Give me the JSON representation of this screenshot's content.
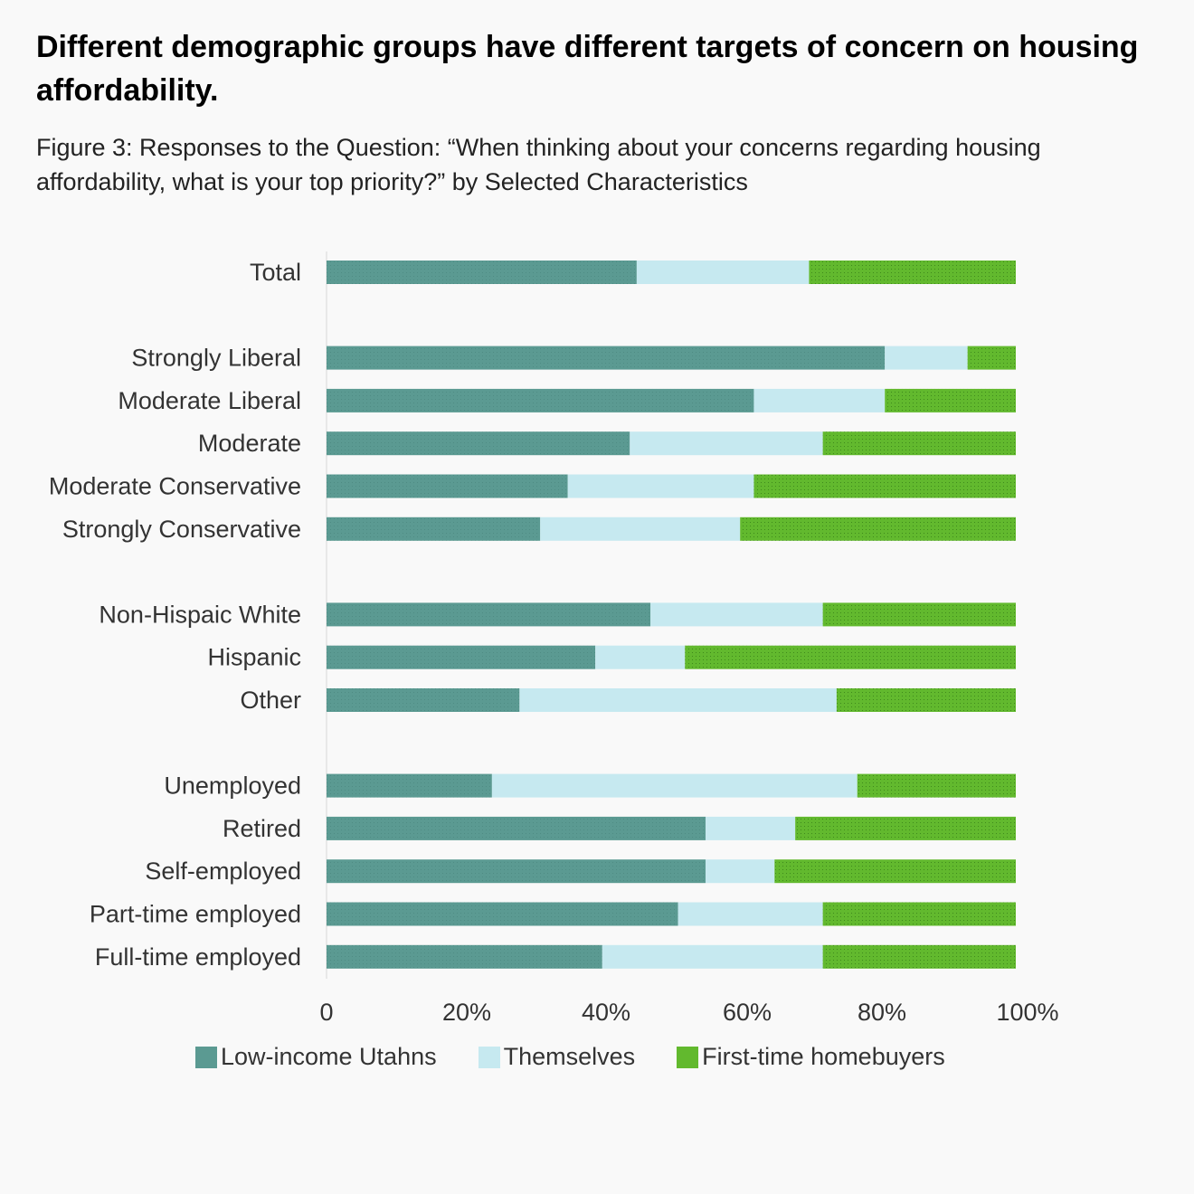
{
  "header": {
    "title": "Different demographic groups have different targets of concern on housing affordability.",
    "subtitle": "Figure 3: Responses to the Question: “When thinking about your concerns regarding housing affordability, what is your top priority?” by Selected Characteristics"
  },
  "colors": {
    "low_income": "#5b9a92",
    "themselves": "#c6e9f0",
    "first_time": "#62b92e",
    "axis_text": "#333333",
    "category_text": "#333333"
  },
  "chart_data": {
    "type": "bar",
    "orientation": "horizontal",
    "stacked": true,
    "normalized": true,
    "categories": [
      "Total",
      "Strongly Liberal",
      "Moderate Liberal",
      "Moderate",
      "Moderate Conservative",
      "Strongly Conservative",
      "Non-Hispaic White",
      "Hispanic",
      "Other",
      "Unemployed",
      "Retired",
      "Self-employed",
      "Part-time employed",
      "Full-time employed"
    ],
    "groups": [
      [
        "Total"
      ],
      [
        "Strongly Liberal",
        "Moderate Liberal",
        "Moderate",
        "Moderate Conservative",
        "Strongly Conservative"
      ],
      [
        "Non-Hispaic White",
        "Hispanic",
        "Other"
      ],
      [
        "Unemployed",
        "Retired",
        "Self-employed",
        "Part-time employed",
        "Full-time employed"
      ]
    ],
    "series": [
      {
        "name": "Low-income Utahns",
        "color": "#5b9a92",
        "values": [
          45,
          81,
          62,
          44,
          35,
          31,
          47,
          39,
          28,
          24,
          55,
          55,
          51,
          40
        ]
      },
      {
        "name": "Themselves",
        "color": "#c6e9f0",
        "values": [
          25,
          12,
          19,
          28,
          27,
          29,
          25,
          13,
          46,
          53,
          13,
          10,
          21,
          32
        ]
      },
      {
        "name": "First-time homebuyers",
        "color": "#62b92e",
        "values": [
          30,
          7,
          19,
          28,
          38,
          40,
          28,
          48,
          26,
          23,
          32,
          35,
          28,
          28
        ]
      }
    ],
    "xlim": [
      0,
      100
    ],
    "x_ticks": [
      "0",
      "20%",
      "40%",
      "60%",
      "80%",
      "100%"
    ],
    "legend_position": "bottom",
    "grid": false
  }
}
